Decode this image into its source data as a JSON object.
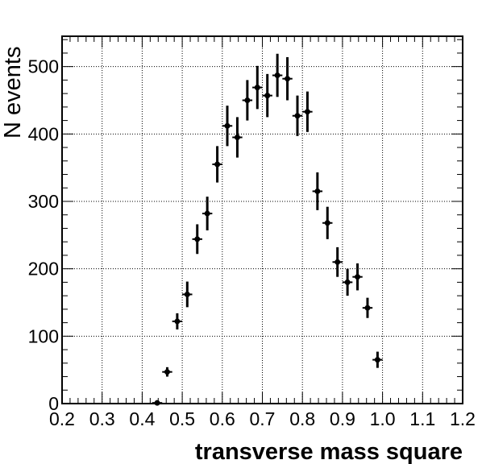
{
  "chart_data": {
    "type": "scatter",
    "xlabel": "transverse mass square",
    "ylabel": "N events",
    "xlim": [
      0.2,
      1.2
    ],
    "ylim": [
      0,
      545
    ],
    "grid": true,
    "x_ticks": [
      "0.2",
      "0.3",
      "0.4",
      "0.5",
      "0.6",
      "0.7",
      "0.8",
      "0.9",
      "1.0",
      "1.1",
      "1.2"
    ],
    "y_ticks": [
      "0",
      "100",
      "200",
      "300",
      "400",
      "500"
    ],
    "bin_halfwidth": 0.0125,
    "points": [
      {
        "x": 0.4375,
        "y": 1,
        "err": 1
      },
      {
        "x": 0.4625,
        "y": 47,
        "err": 7
      },
      {
        "x": 0.4875,
        "y": 122,
        "err": 12
      },
      {
        "x": 0.5125,
        "y": 162,
        "err": 19
      },
      {
        "x": 0.5375,
        "y": 244,
        "err": 22
      },
      {
        "x": 0.5625,
        "y": 282,
        "err": 25
      },
      {
        "x": 0.5875,
        "y": 355,
        "err": 27
      },
      {
        "x": 0.6125,
        "y": 412,
        "err": 30
      },
      {
        "x": 0.6375,
        "y": 395,
        "err": 30
      },
      {
        "x": 0.6625,
        "y": 450,
        "err": 30
      },
      {
        "x": 0.6875,
        "y": 469,
        "err": 32
      },
      {
        "x": 0.7125,
        "y": 457,
        "err": 32
      },
      {
        "x": 0.7375,
        "y": 487,
        "err": 32
      },
      {
        "x": 0.7625,
        "y": 482,
        "err": 32
      },
      {
        "x": 0.7875,
        "y": 427,
        "err": 30
      },
      {
        "x": 0.8125,
        "y": 433,
        "err": 30
      },
      {
        "x": 0.8375,
        "y": 315,
        "err": 28
      },
      {
        "x": 0.8625,
        "y": 268,
        "err": 24
      },
      {
        "x": 0.8875,
        "y": 210,
        "err": 22
      },
      {
        "x": 0.9125,
        "y": 180,
        "err": 20
      },
      {
        "x": 0.9375,
        "y": 188,
        "err": 20
      },
      {
        "x": 0.9625,
        "y": 142,
        "err": 15
      },
      {
        "x": 0.9875,
        "y": 65,
        "err": 12
      }
    ]
  }
}
